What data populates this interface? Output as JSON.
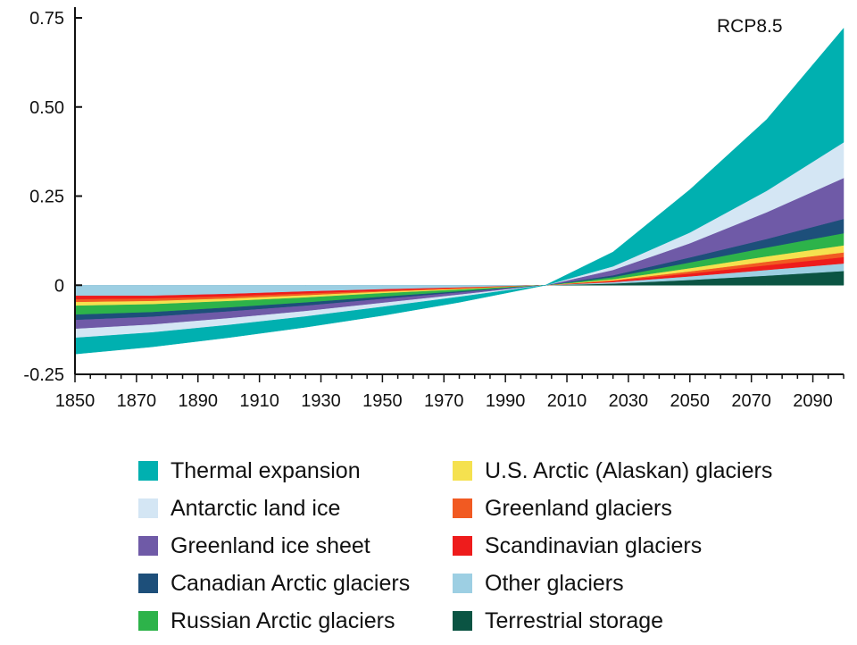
{
  "chart_data": {
    "type": "area",
    "stacked": true,
    "annotation": "RCP8.5",
    "title": "",
    "xlabel": "",
    "ylabel": "",
    "xlim": [
      1850,
      2100
    ],
    "ylim": [
      -0.25,
      0.75
    ],
    "x_ticks": [
      1850,
      1870,
      1890,
      1910,
      1930,
      1950,
      1970,
      1990,
      2010,
      2030,
      2050,
      2070,
      2090
    ],
    "y_ticks": [
      {
        "value": -0.25,
        "label": "-0.25"
      },
      {
        "value": 0,
        "label": "0"
      },
      {
        "value": 0.25,
        "label": "0.25"
      },
      {
        "value": 0.5,
        "label": "0.50"
      },
      {
        "value": 0.75,
        "label": "0.75"
      }
    ],
    "x": [
      1850,
      1875,
      1900,
      1925,
      1950,
      1975,
      2003,
      2025,
      2050,
      2075,
      2100
    ],
    "series": [
      {
        "name": "Terrestrial storage",
        "color": "#0b5443",
        "values": [
          0,
          0,
          0,
          0,
          0,
          0,
          0,
          0.005,
          0.015,
          0.027,
          0.04
        ]
      },
      {
        "name": "Other glaciers",
        "color": "#9dcfe3",
        "values": [
          -0.03,
          -0.03,
          -0.025,
          -0.018,
          -0.012,
          -0.007,
          0,
          0.004,
          0.01,
          0.016,
          0.021
        ]
      },
      {
        "name": "Scandinavian glaciers",
        "color": "#ee1c1c",
        "values": [
          -0.01,
          -0.008,
          -0.007,
          -0.006,
          -0.004,
          -0.002,
          0,
          0.003,
          0.008,
          0.013,
          0.018
        ]
      },
      {
        "name": "Greenland glaciers",
        "color": "#f15a22",
        "values": [
          -0.008,
          -0.007,
          -0.006,
          -0.005,
          -0.003,
          -0.002,
          0,
          0.002,
          0.006,
          0.01,
          0.013
        ]
      },
      {
        "name": "U.S. Arctic (Alaskan) glaciers",
        "color": "#f5e14f",
        "values": [
          -0.01,
          -0.009,
          -0.007,
          -0.006,
          -0.004,
          -0.002,
          0,
          0.003,
          0.009,
          0.015,
          0.02
        ]
      },
      {
        "name": "Russian Arctic glaciers",
        "color": "#2db34a",
        "values": [
          -0.025,
          -0.022,
          -0.018,
          -0.014,
          -0.01,
          -0.005,
          0,
          0.006,
          0.016,
          0.025,
          0.034
        ]
      },
      {
        "name": "Canadian Arctic glaciers",
        "color": "#1d4f7a",
        "values": [
          -0.015,
          -0.013,
          -0.011,
          -0.009,
          -0.006,
          -0.003,
          0,
          0.005,
          0.014,
          0.024,
          0.04
        ]
      },
      {
        "name": "Greenland ice sheet",
        "color": "#6f5aa7",
        "values": [
          -0.025,
          -0.022,
          -0.019,
          -0.015,
          -0.011,
          -0.006,
          0,
          0.015,
          0.04,
          0.075,
          0.115
        ]
      },
      {
        "name": "Antarctic land ice",
        "color": "#d4e6f4",
        "values": [
          -0.025,
          -0.022,
          -0.019,
          -0.015,
          -0.011,
          -0.006,
          0,
          0.01,
          0.03,
          0.06,
          0.1
        ]
      },
      {
        "name": "Thermal expansion",
        "color": "#00b0b0",
        "values": [
          -0.045,
          -0.04,
          -0.035,
          -0.03,
          -0.024,
          -0.015,
          0,
          0.04,
          0.12,
          0.2,
          0.32
        ]
      }
    ]
  },
  "legend": {
    "items": [
      {
        "label": "Thermal expansion",
        "color": "#00b0b0"
      },
      {
        "label": "Antarctic land ice",
        "color": "#d4e6f4"
      },
      {
        "label": "Greenland ice sheet",
        "color": "#6f5aa7"
      },
      {
        "label": "Canadian Arctic glaciers",
        "color": "#1d4f7a"
      },
      {
        "label": "Russian Arctic glaciers",
        "color": "#2db34a"
      },
      {
        "label": "U.S. Arctic (Alaskan) glaciers",
        "color": "#f5e14f"
      },
      {
        "label": "Greenland glaciers",
        "color": "#f15a22"
      },
      {
        "label": "Scandinavian glaciers",
        "color": "#ee1c1c"
      },
      {
        "label": "Other glaciers",
        "color": "#9dcfe3"
      },
      {
        "label": "Terrestrial storage",
        "color": "#0b5443"
      }
    ]
  }
}
